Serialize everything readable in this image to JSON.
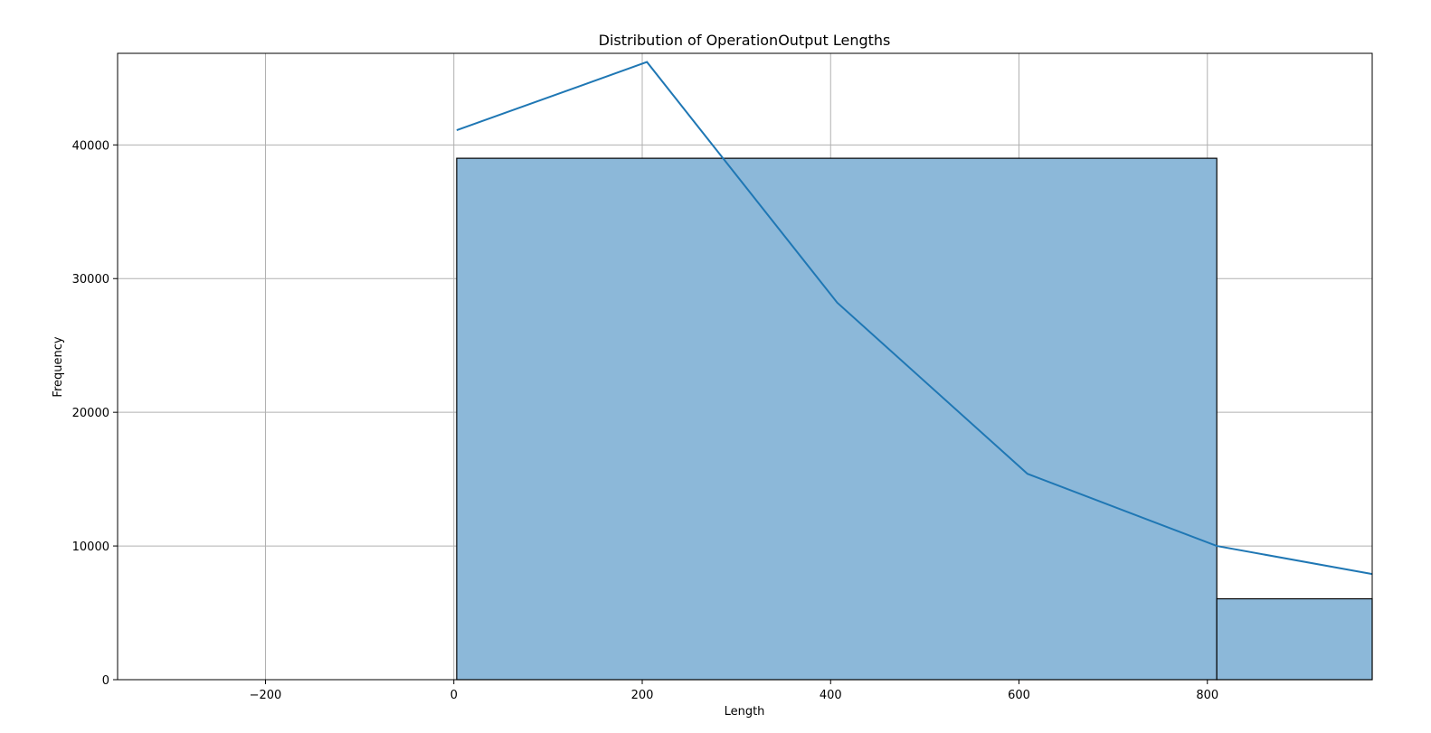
{
  "chart_data": {
    "type": "bar",
    "title": "Distribution of OperationOutput Lengths",
    "xlabel": "Length",
    "ylabel": "Frequency",
    "xlim": [
      -357,
      975
    ],
    "ylim": [
      0,
      46850
    ],
    "grid": true,
    "x_ticks": [
      -200,
      0,
      200,
      400,
      600,
      800
    ],
    "x_tick_labels": [
      "−200",
      "0",
      "200",
      "400",
      "600",
      "800"
    ],
    "y_ticks": [
      0,
      10000,
      20000,
      30000,
      40000
    ],
    "y_tick_labels": [
      "0",
      "10000",
      "20000",
      "30000",
      "40000"
    ],
    "bins": [
      {
        "start": 3,
        "end": 810,
        "count": 39000
      },
      {
        "start": 810,
        "end": 975,
        "count": 6050
      }
    ],
    "kde_line": {
      "x": [
        3,
        205,
        407,
        609,
        810,
        975
      ],
      "y": [
        41100,
        46200,
        28200,
        15400,
        10000,
        7900
      ]
    },
    "colors": {
      "bar_fill": "#8cb8d9",
      "bar_edge": "#000000",
      "line": "#1f77b4",
      "grid": "#b0b0b0"
    }
  }
}
